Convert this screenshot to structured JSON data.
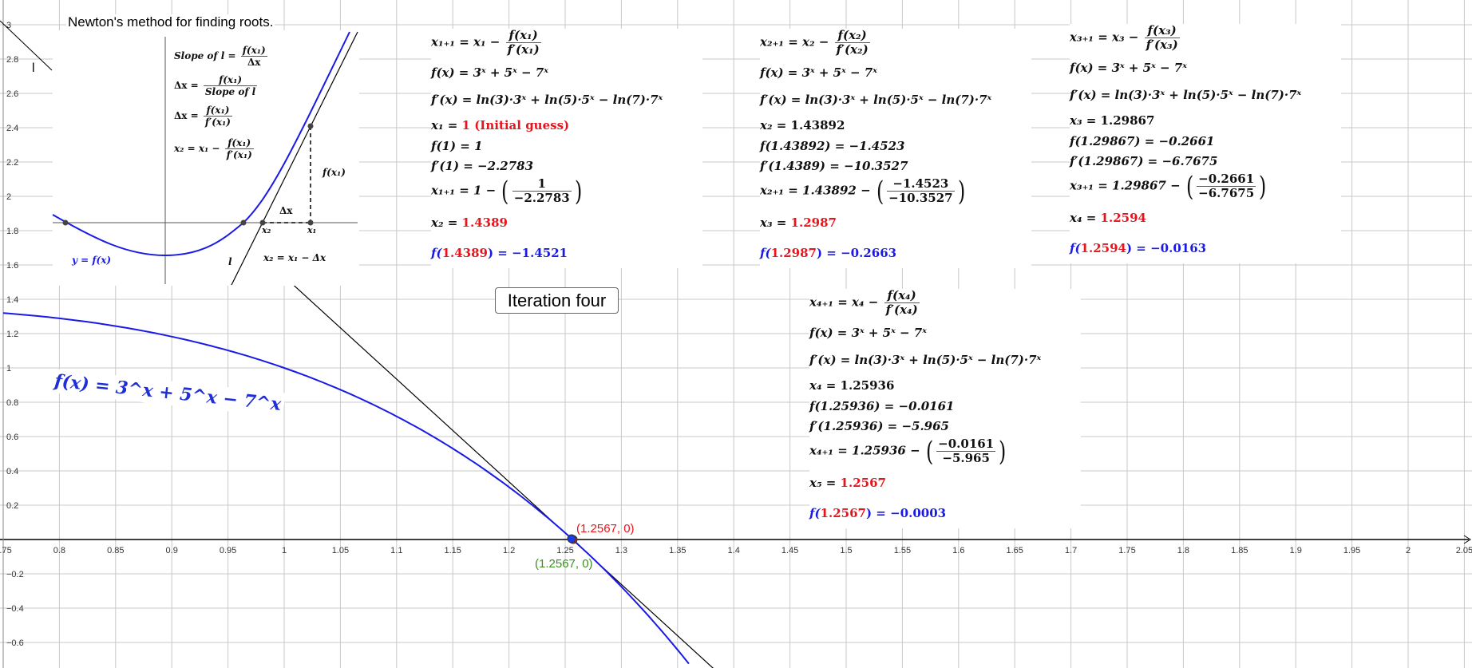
{
  "title": "Newton's method for finding roots.",
  "button": {
    "label": "Iteration four"
  },
  "function_label": "f(x) = 3^x + 5^x − 7^x",
  "colors": {
    "curve": "#1a1ae6",
    "tangent": "#000000",
    "highlight_red": "#e8141b",
    "highlight_blue": "#1a1ae6",
    "point_label_green": "#3a8f1f",
    "grid": "#c0c0c0"
  },
  "inset": {
    "line1_lhs": "Slope of l",
    "line1_num": "f(x₁)",
    "line1_den": "Δx",
    "line2_lhs": "Δx",
    "line2_num": "f(x₁)",
    "line2_den": "Slope of l",
    "line3_lhs": "Δx",
    "line3_num": "f(x₁)",
    "line3_den": "f′(x₁)",
    "line4_lhs": "x₂ = x₁ −",
    "line4_num": "f(x₁)",
    "line4_den": "f′(x₁)",
    "label_fx1": "f(x₁)",
    "label_dx": "Δx",
    "label_x2": "x₂",
    "label_x1": "x₁",
    "label_curve": "y = f(x)",
    "label_l": "l",
    "label_result": "x₂ = x₁ − Δx"
  },
  "iterations": [
    {
      "formula_lhs": "x₁₊₁ = x₁ −",
      "formula_num": "f(x₁)",
      "formula_den": "f′(x₁)",
      "f_def": "f(x) = 3ˣ + 5ˣ − 7ˣ",
      "fprime_def": "f′(x) = ln(3)·3ˣ + ln(5)·5ˣ − ln(7)·7ˣ",
      "x_label": "x₁ =",
      "x_value": "1 (Initial guess)",
      "x_value_red": true,
      "f_eval": "f(1) = 1",
      "fprime_eval": "f′(1) = −2.2783",
      "step_lhs": "x₁₊₁ = 1 −",
      "step_num": "1",
      "step_den": "−2.2783",
      "next_label": "x₂ =",
      "next_value": "1.4389",
      "check_prefix": "f(",
      "check_arg": "1.4389",
      "check_suffix": ") = −1.4521"
    },
    {
      "formula_lhs": "x₂₊₁ = x₂ −",
      "formula_num": "f(x₂)",
      "formula_den": "f′(x₂)",
      "f_def": "f(x) = 3ˣ + 5ˣ − 7ˣ",
      "fprime_def": "f′(x) = ln(3)·3ˣ + ln(5)·5ˣ − ln(7)·7ˣ",
      "x_label": "x₂ =",
      "x_value": "1.43892",
      "x_value_red": false,
      "f_eval": "f(1.43892) = −1.4523",
      "fprime_eval": "f′(1.4389) = −10.3527",
      "step_lhs": "x₂₊₁ = 1.43892 −",
      "step_num": "−1.4523",
      "step_den": "−10.3527",
      "next_label": "x₃ =",
      "next_value": "1.2987",
      "check_prefix": "f(",
      "check_arg": "1.2987",
      "check_suffix": ") = −0.2663"
    },
    {
      "formula_lhs": "x₃₊₁ = x₃ −",
      "formula_num": "f(x₃)",
      "formula_den": "f′(x₃)",
      "f_def": "f(x) = 3ˣ + 5ˣ − 7ˣ",
      "fprime_def": "f′(x) = ln(3)·3ˣ + ln(5)·5ˣ − ln(7)·7ˣ",
      "x_label": "x₃ =",
      "x_value": "1.29867",
      "x_value_red": false,
      "f_eval": "f(1.29867) = −0.2661",
      "fprime_eval": "f′(1.29867) = −6.7675",
      "step_lhs": "x₃₊₁ = 1.29867 −",
      "step_num": "−0.2661",
      "step_den": "−6.7675",
      "next_label": "x₄ =",
      "next_value": "1.2594",
      "check_prefix": "f(",
      "check_arg": "1.2594",
      "check_suffix": ") = −0.0163"
    },
    {
      "formula_lhs": "x₄₊₁ = x₄ −",
      "formula_num": "f(x₄)",
      "formula_den": "f′(x₄)",
      "f_def": "f(x) = 3ˣ + 5ˣ − 7ˣ",
      "fprime_def": "f′(x) = ln(3)·3ˣ + ln(5)·5ˣ − ln(7)·7ˣ",
      "x_label": "x₄ =",
      "x_value": "1.25936",
      "x_value_red": false,
      "f_eval": "f(1.25936) = −0.0161",
      "fprime_eval": "f′(1.25936) = −5.965",
      "step_lhs": "x₄₊₁ = 1.25936 −",
      "step_num": "−0.0161",
      "step_den": "−5.965",
      "next_label": "x₅ =",
      "next_value": "1.2567",
      "check_prefix": "f(",
      "check_arg": "1.2567",
      "check_suffix": ") = −0.0003"
    }
  ],
  "points": {
    "root_red_label": "(1.2567, 0)",
    "root_green_label": "(1.2567, 0)"
  },
  "chart_data": {
    "type": "line",
    "title": "Newton's method for finding roots.",
    "xlabel": "",
    "ylabel": "",
    "xlim": [
      0.75,
      2.05
    ],
    "ylim": [
      -0.75,
      3.0
    ],
    "grid": true,
    "x_ticks": [
      "0.75",
      "0.8",
      "0.85",
      "0.9",
      "0.95",
      "1",
      "1.05",
      "1.1",
      "1.15",
      "1.2",
      "1.25",
      "1.3",
      "1.35",
      "1.4",
      "1.45",
      "1.5",
      "1.55",
      "1.6",
      "1.65",
      "1.7",
      "1.75",
      "1.8",
      "1.85",
      "1.9",
      "1.95",
      "2",
      "2.05"
    ],
    "y_ticks": [
      "-0.6",
      "-0.4",
      "-0.2",
      "0.2",
      "0.4",
      "0.6",
      "0.8",
      "1",
      "1.2",
      "1.4",
      "1.6",
      "1.8",
      "2",
      "2.2",
      "2.4",
      "2.6",
      "2.8",
      "3"
    ],
    "series": [
      {
        "name": "f(x) = 3^x + 5^x − 7^x",
        "color": "#1a1ae6",
        "x": [
          0.75,
          0.8,
          0.85,
          0.9,
          0.95,
          1.0,
          1.05,
          1.1,
          1.15,
          1.2,
          1.25,
          1.2567,
          1.3,
          1.35
        ],
        "y": [
          1.32,
          1.3,
          1.25,
          1.19,
          1.1,
          1.0,
          0.87,
          0.72,
          0.55,
          0.34,
          0.04,
          0.0,
          -0.28,
          -0.63
        ]
      },
      {
        "name": "tangent at x4 = 1.25936 (slope −5.965)",
        "color": "#000000",
        "x": [
          0.967,
          1.2567,
          1.385
        ],
        "y": [
          1.73,
          0.0,
          -0.77
        ]
      }
    ],
    "annotations": [
      {
        "text": "(1.2567, 0)",
        "x": 1.2567,
        "y": 0,
        "color": "#e8141b"
      },
      {
        "text": "(1.2567, 0)",
        "x": 1.2567,
        "y": 0,
        "color": "#3a8f1f"
      }
    ]
  }
}
